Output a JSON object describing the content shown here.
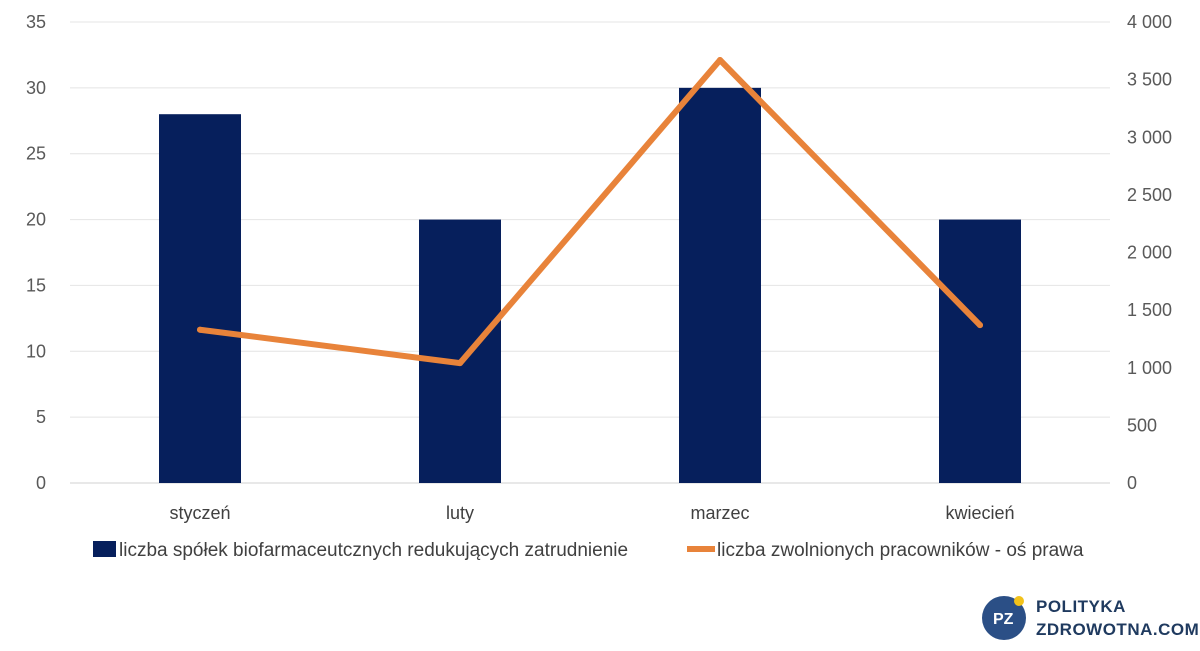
{
  "chart_data": {
    "type": "bar",
    "categories": [
      "styczeń",
      "luty",
      "marzec",
      "kwiecień"
    ],
    "series": [
      {
        "name": "liczba spółek biofarmaceutcznych redukujących zatrudnienie",
        "type": "bar",
        "axis": "left",
        "color": "#061f5c",
        "values": [
          28,
          20,
          30,
          20
        ]
      },
      {
        "name": "liczba zwolnionych pracowników - oś prawa",
        "type": "line",
        "axis": "right",
        "color": "#e8833a",
        "values": [
          1330,
          1040,
          3670,
          1370
        ]
      }
    ],
    "y_left": {
      "range": [
        0,
        35
      ],
      "ticks": [
        "0",
        "5",
        "10",
        "15",
        "20",
        "25",
        "30",
        "35"
      ],
      "tick_values": [
        0,
        5,
        10,
        15,
        20,
        25,
        30,
        35
      ]
    },
    "y_right": {
      "range": [
        0,
        4000
      ],
      "ticks": [
        "0",
        "500",
        "1 000",
        "1 500",
        "2 000",
        "2 500",
        "3 000",
        "3 500",
        "4 000"
      ],
      "tick_values": [
        0,
        500,
        1000,
        1500,
        2000,
        2500,
        3000,
        3500,
        4000
      ]
    },
    "grid": true,
    "legend": "bottom"
  },
  "logo": {
    "mark": "PZ",
    "line1": "POLITYKA",
    "line2": "ZDROWOTNA.COM",
    "colors": {
      "circle": "#2b4f86",
      "dot": "#f2c21b",
      "text": "#1f3a5f"
    }
  }
}
